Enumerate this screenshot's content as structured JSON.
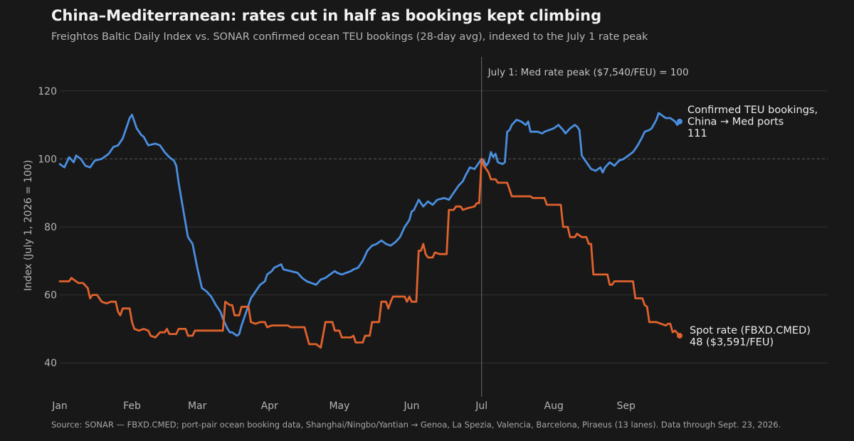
{
  "chart_data": {
    "type": "line",
    "title": "China–Mediterranean: rates cut in half as bookings kept climbing",
    "subtitle": "Freightos Baltic Daily Index vs. SONAR confirmed ocean TEU bookings (28-day avg), indexed to the July 1 rate peak",
    "ylabel": "Index (July 1, 2026 = 100)",
    "xlabel": "",
    "xlim": [
      0,
      266
    ],
    "ylim": [
      30,
      130
    ],
    "yticks": [
      40,
      60,
      80,
      100,
      120
    ],
    "xticks": [
      {
        "label": "Jan",
        "day": 0
      },
      {
        "label": "Feb",
        "day": 31
      },
      {
        "label": "Mar",
        "day": 59
      },
      {
        "label": "Apr",
        "day": 90
      },
      {
        "label": "May",
        "day": 120
      },
      {
        "label": "Jun",
        "day": 151
      },
      {
        "label": "Jul",
        "day": 181
      },
      {
        "label": "Aug",
        "day": 212
      },
      {
        "label": "Sep",
        "day": 243
      }
    ],
    "grid": true,
    "reference_line": {
      "y": 100
    },
    "annotation": {
      "text": "July 1: Med rate peak ($7,540/FEU) = 100",
      "day": 181
    },
    "series": [
      {
        "key": "bookings",
        "label_lines": [
          "Confirmed TEU bookings,",
          "China → Med ports",
          "111"
        ],
        "color": "#4a8ee0",
        "end_value": 111,
        "points": [
          [
            0,
            98.5
          ],
          [
            2,
            97.5
          ],
          [
            4,
            100.5
          ],
          [
            6,
            99
          ],
          [
            7,
            101
          ],
          [
            9,
            100
          ],
          [
            11,
            98
          ],
          [
            13,
            97.5
          ],
          [
            15,
            99.5
          ],
          [
            18,
            100
          ],
          [
            21,
            101.5
          ],
          [
            23,
            103.5
          ],
          [
            25,
            104
          ],
          [
            27,
            106
          ],
          [
            29,
            110
          ],
          [
            30,
            112
          ],
          [
            31,
            113
          ],
          [
            33,
            109
          ],
          [
            35,
            107
          ],
          [
            36,
            106.5
          ],
          [
            38,
            104
          ],
          [
            41,
            104.5
          ],
          [
            43,
            104
          ],
          [
            45,
            102
          ],
          [
            47,
            100.5
          ],
          [
            49,
            99.5
          ],
          [
            50,
            98
          ],
          [
            51,
            93
          ],
          [
            53,
            85
          ],
          [
            55,
            77
          ],
          [
            57,
            75
          ],
          [
            59,
            68
          ],
          [
            61,
            62
          ],
          [
            63,
            61
          ],
          [
            65,
            59.5
          ],
          [
            67,
            57
          ],
          [
            69,
            55
          ],
          [
            70,
            53
          ],
          [
            72,
            50
          ],
          [
            73,
            49
          ],
          [
            74,
            49
          ],
          [
            75,
            48.5
          ],
          [
            76,
            48
          ],
          [
            77,
            48.5
          ],
          [
            78,
            51
          ],
          [
            80,
            55
          ],
          [
            82,
            59
          ],
          [
            84,
            61
          ],
          [
            86,
            63
          ],
          [
            88,
            64
          ],
          [
            89,
            66
          ],
          [
            91,
            67
          ],
          [
            92,
            68
          ],
          [
            95,
            69
          ],
          [
            96,
            67.5
          ],
          [
            99,
            67
          ],
          [
            102,
            66.5
          ],
          [
            104,
            65
          ],
          [
            106,
            64
          ],
          [
            108,
            63.5
          ],
          [
            110,
            63
          ],
          [
            112,
            64.5
          ],
          [
            114,
            65
          ],
          [
            116,
            66
          ],
          [
            118,
            67
          ],
          [
            119,
            66.5
          ],
          [
            121,
            66
          ],
          [
            123,
            66.5
          ],
          [
            125,
            67
          ],
          [
            126,
            67.5
          ],
          [
            128,
            68
          ],
          [
            130,
            70
          ],
          [
            132,
            73
          ],
          [
            134,
            74.5
          ],
          [
            136,
            75
          ],
          [
            138,
            76
          ],
          [
            140,
            75
          ],
          [
            142,
            74.5
          ],
          [
            144,
            75.5
          ],
          [
            146,
            77
          ],
          [
            148,
            80
          ],
          [
            150,
            82
          ],
          [
            151,
            84.5
          ],
          [
            152,
            85
          ],
          [
            153,
            86.5
          ],
          [
            154,
            88
          ],
          [
            156,
            86
          ],
          [
            158,
            87.5
          ],
          [
            160,
            86.5
          ],
          [
            162,
            88
          ],
          [
            165,
            88.5
          ],
          [
            167,
            88
          ],
          [
            169,
            90
          ],
          [
            171,
            92
          ],
          [
            173,
            93.5
          ],
          [
            174,
            95
          ],
          [
            176,
            97.5
          ],
          [
            178,
            97
          ],
          [
            180,
            99
          ],
          [
            181,
            100
          ],
          [
            182,
            99.5
          ],
          [
            183,
            98
          ],
          [
            184,
            99
          ],
          [
            185,
            102
          ],
          [
            186,
            100.5
          ],
          [
            187,
            101.5
          ],
          [
            188,
            99
          ],
          [
            190,
            98.5
          ],
          [
            191,
            99
          ],
          [
            192,
            108
          ],
          [
            193,
            108.5
          ],
          [
            194,
            110
          ],
          [
            196,
            111.5
          ],
          [
            198,
            111
          ],
          [
            200,
            110
          ],
          [
            201,
            111
          ],
          [
            202,
            108
          ],
          [
            205,
            108
          ],
          [
            207,
            107.5
          ],
          [
            208,
            108
          ],
          [
            210,
            108.5
          ],
          [
            212,
            109
          ],
          [
            214,
            110
          ],
          [
            216,
            108.5
          ],
          [
            217,
            107.5
          ],
          [
            219,
            109
          ],
          [
            221,
            110
          ],
          [
            222,
            109.5
          ],
          [
            223,
            108.5
          ],
          [
            224,
            101
          ],
          [
            226,
            99
          ],
          [
            228,
            97
          ],
          [
            230,
            96.5
          ],
          [
            232,
            97.5
          ],
          [
            233,
            96
          ],
          [
            234,
            97.5
          ],
          [
            236,
            99
          ],
          [
            238,
            98
          ],
          [
            240,
            99.5
          ],
          [
            242,
            100
          ],
          [
            244,
            101
          ],
          [
            246,
            102
          ],
          [
            248,
            104
          ],
          [
            250,
            106.5
          ],
          [
            251,
            108
          ],
          [
            253,
            108.5
          ],
          [
            254,
            109
          ],
          [
            256,
            111.5
          ],
          [
            257,
            113.5
          ],
          [
            258,
            113
          ],
          [
            260,
            112
          ],
          [
            262,
            112
          ],
          [
            264,
            111
          ],
          [
            265,
            110
          ],
          [
            266,
            111
          ]
        ]
      },
      {
        "key": "rate",
        "label_lines": [
          "Spot rate (FBXD.CMED)",
          "48  ($3,591/FEU)"
        ],
        "color": "#e0622d",
        "end_value": 48,
        "points": [
          [
            0,
            64
          ],
          [
            4,
            64
          ],
          [
            5,
            65
          ],
          [
            6,
            64.5
          ],
          [
            8,
            63.5
          ],
          [
            10,
            63.5
          ],
          [
            12,
            62
          ],
          [
            13,
            59
          ],
          [
            14,
            60
          ],
          [
            16,
            60
          ],
          [
            18,
            58
          ],
          [
            20,
            57.5
          ],
          [
            22,
            58
          ],
          [
            24,
            58
          ],
          [
            25,
            55
          ],
          [
            26,
            54
          ],
          [
            27,
            56
          ],
          [
            30,
            56
          ],
          [
            31,
            52
          ],
          [
            32,
            50
          ],
          [
            34,
            49.5
          ],
          [
            36,
            50
          ],
          [
            38,
            49.5
          ],
          [
            39,
            48
          ],
          [
            41,
            47.5
          ],
          [
            43,
            49
          ],
          [
            45,
            49
          ],
          [
            46,
            50
          ],
          [
            47,
            48.5
          ],
          [
            50,
            48.5
          ],
          [
            51,
            50
          ],
          [
            54,
            50
          ],
          [
            55,
            48
          ],
          [
            57,
            48
          ],
          [
            58,
            49.5
          ],
          [
            70,
            49.5
          ],
          [
            71,
            58
          ],
          [
            73,
            57
          ],
          [
            74,
            57
          ],
          [
            75,
            54
          ],
          [
            77,
            54
          ],
          [
            78,
            56.5
          ],
          [
            81,
            56.5
          ],
          [
            82,
            52
          ],
          [
            84,
            51.5
          ],
          [
            86,
            52
          ],
          [
            88,
            52
          ],
          [
            89,
            50.5
          ],
          [
            91,
            51
          ],
          [
            98,
            51
          ],
          [
            99,
            50.5
          ],
          [
            105,
            50.5
          ],
          [
            106,
            48
          ],
          [
            107,
            45.5
          ],
          [
            110,
            45.5
          ],
          [
            111,
            45
          ],
          [
            112,
            44.5
          ],
          [
            114,
            52
          ],
          [
            117,
            52
          ],
          [
            118,
            49.5
          ],
          [
            120,
            49.5
          ],
          [
            121,
            47.5
          ],
          [
            125,
            47.5
          ],
          [
            126,
            48
          ],
          [
            127,
            46
          ],
          [
            130,
            46
          ],
          [
            131,
            48
          ],
          [
            133,
            48
          ],
          [
            134,
            52
          ],
          [
            137,
            52
          ],
          [
            138,
            58
          ],
          [
            140,
            58
          ],
          [
            141,
            56
          ],
          [
            142,
            58
          ],
          [
            143,
            59.5
          ],
          [
            148,
            59.5
          ],
          [
            149,
            58
          ],
          [
            150,
            59.5
          ],
          [
            151,
            58
          ],
          [
            153,
            58
          ],
          [
            154,
            73
          ],
          [
            155,
            73
          ],
          [
            156,
            75
          ],
          [
            157,
            72
          ],
          [
            158,
            71
          ],
          [
            160,
            71
          ],
          [
            161,
            72.5
          ],
          [
            163,
            72
          ],
          [
            166,
            72
          ],
          [
            167,
            85
          ],
          [
            169,
            85
          ],
          [
            170,
            86
          ],
          [
            172,
            86
          ],
          [
            173,
            85
          ],
          [
            175,
            85.5
          ],
          [
            178,
            86
          ],
          [
            179,
            87
          ],
          [
            180,
            87
          ],
          [
            181,
            100
          ],
          [
            182,
            98
          ],
          [
            183,
            97
          ],
          [
            184,
            96
          ],
          [
            185,
            94
          ],
          [
            187,
            94
          ],
          [
            188,
            93
          ],
          [
            192,
            93
          ],
          [
            193,
            91
          ],
          [
            194,
            89
          ],
          [
            202,
            89
          ],
          [
            203,
            88.5
          ],
          [
            208,
            88.5
          ],
          [
            209,
            86.5
          ],
          [
            215,
            86.5
          ],
          [
            216,
            80
          ],
          [
            218,
            80
          ],
          [
            219,
            77
          ],
          [
            221,
            77
          ],
          [
            222,
            78
          ],
          [
            224,
            77
          ],
          [
            226,
            77
          ],
          [
            227,
            75
          ],
          [
            228,
            75
          ],
          [
            229,
            66
          ],
          [
            235,
            66
          ],
          [
            236,
            63
          ],
          [
            237,
            63
          ],
          [
            238,
            64
          ],
          [
            246,
            64
          ],
          [
            247,
            59
          ],
          [
            250,
            59
          ],
          [
            251,
            57
          ],
          [
            252,
            56.5
          ],
          [
            253,
            52
          ],
          [
            255,
            52
          ],
          [
            256,
            52
          ],
          [
            258,
            51.5
          ],
          [
            260,
            51
          ],
          [
            261,
            51.5
          ],
          [
            262,
            51.5
          ],
          [
            263,
            49
          ],
          [
            264,
            49.5
          ],
          [
            266,
            48
          ]
        ]
      }
    ],
    "source": "Source: SONAR — FBXD.CMED; port-pair ocean booking data, Shanghai/Ningbo/Yantian → Genoa, La Spezia, Valencia, Barcelona, Piraeus (13 lanes). Data through Sept. 23, 2026."
  }
}
